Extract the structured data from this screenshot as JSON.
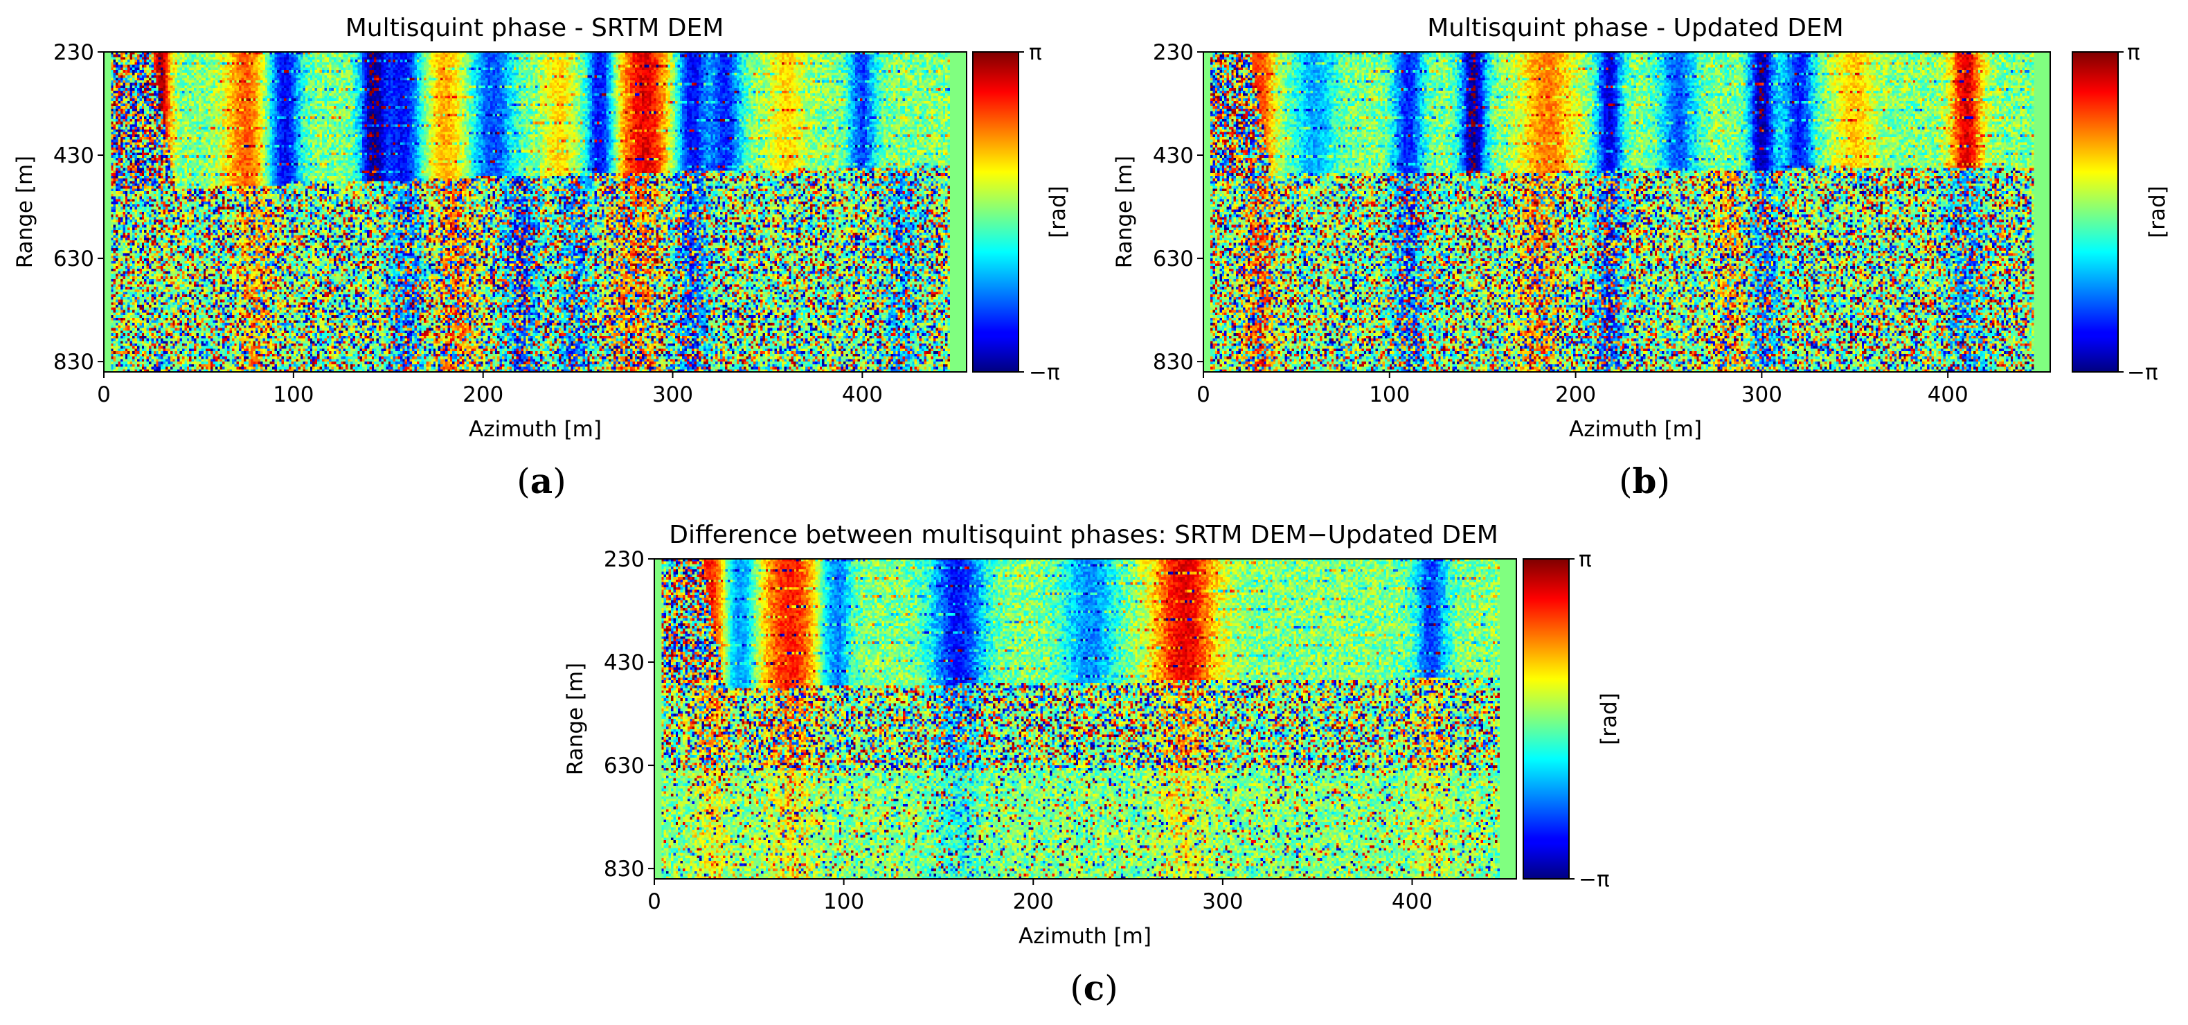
{
  "chart_data": [
    {
      "type": "heatmap",
      "panel": "a",
      "title": "Multisquint phase - SRTM DEM",
      "xlabel": "Azimuth [m]",
      "ylabel": "Range [m]",
      "x_ticks": [
        0,
        100,
        200,
        300,
        400
      ],
      "y_ticks": [
        230,
        430,
        630,
        830
      ],
      "xlim": [
        0,
        455
      ],
      "ylim": [
        850,
        230
      ],
      "colorbar": {
        "label": "[rad]",
        "max_label": "π",
        "min_label": "−π",
        "colormap": "jet",
        "range": [
          -3.14159,
          3.14159
        ]
      },
      "caption": "a",
      "features": {
        "boundary_azimuth": [
          0,
          100,
          200,
          300,
          400,
          455
        ],
        "boundary_range": [
          500,
          487,
          472,
          462,
          455,
          450
        ],
        "coherent_stripes_above_boundary": [
          {
            "azimuth": 30,
            "width": 4,
            "phase": 2.9
          },
          {
            "azimuth": 75,
            "width": 8,
            "phase": 1.8
          },
          {
            "azimuth": 95,
            "width": 6,
            "phase": -2.5
          },
          {
            "azimuth": 142,
            "width": 5,
            "phase": -3.0
          },
          {
            "azimuth": 158,
            "width": 7,
            "phase": -2.4
          },
          {
            "azimuth": 180,
            "width": 8,
            "phase": 1.3
          },
          {
            "azimuth": 205,
            "width": 8,
            "phase": -1.9
          },
          {
            "azimuth": 240,
            "width": 6,
            "phase": 1.0
          },
          {
            "azimuth": 262,
            "width": 5,
            "phase": -2.6
          },
          {
            "azimuth": 285,
            "width": 10,
            "phase": 2.5
          },
          {
            "azimuth": 310,
            "width": 6,
            "phase": -2.5
          },
          {
            "azimuth": 328,
            "width": 6,
            "phase": -2.1
          },
          {
            "azimuth": 360,
            "width": 7,
            "phase": 1.0
          },
          {
            "azimuth": 400,
            "width": 5,
            "phase": -2.0
          }
        ],
        "stripes_below_boundary": [
          {
            "azimuth": 80,
            "width": 6,
            "phase": 1.6
          },
          {
            "azimuth": 160,
            "width": 6,
            "phase": -2.2
          },
          {
            "azimuth": 185,
            "width": 8,
            "phase": 2.0
          },
          {
            "azimuth": 220,
            "width": 6,
            "phase": -2.6
          },
          {
            "azimuth": 250,
            "width": 6,
            "phase": -2.0
          },
          {
            "azimuth": 280,
            "width": 10,
            "phase": 1.9
          },
          {
            "azimuth": 310,
            "width": 6,
            "phase": -2.5
          },
          {
            "azimuth": 420,
            "width": 6,
            "phase": -1.6
          }
        ]
      }
    },
    {
      "type": "heatmap",
      "panel": "b",
      "title": "Multisquint phase - Updated DEM",
      "xlabel": "Azimuth [m]",
      "ylabel": "Range [m]",
      "x_ticks": [
        0,
        100,
        200,
        300,
        400
      ],
      "y_ticks": [
        230,
        430,
        630,
        830
      ],
      "xlim": [
        0,
        455
      ],
      "ylim": [
        850,
        230
      ],
      "colorbar": {
        "label": "[rad]",
        "max_label": "π",
        "min_label": "−π",
        "colormap": "jet",
        "range": [
          -3.14159,
          3.14159
        ]
      },
      "caption": "b",
      "features": {
        "boundary_azimuth": [
          0,
          100,
          200,
          300,
          400,
          455
        ],
        "boundary_range": [
          470,
          466,
          462,
          458,
          455,
          452
        ],
        "coherent_stripes_above_boundary": [
          {
            "azimuth": 30,
            "width": 6,
            "phase": 2.0
          },
          {
            "azimuth": 60,
            "width": 8,
            "phase": -1.3
          },
          {
            "azimuth": 110,
            "width": 6,
            "phase": -2.2
          },
          {
            "azimuth": 145,
            "width": 5,
            "phase": -3.0
          },
          {
            "azimuth": 185,
            "width": 10,
            "phase": 1.6
          },
          {
            "azimuth": 218,
            "width": 5,
            "phase": -2.6
          },
          {
            "azimuth": 255,
            "width": 7,
            "phase": -1.8
          },
          {
            "azimuth": 300,
            "width": 5,
            "phase": -2.9
          },
          {
            "azimuth": 320,
            "width": 6,
            "phase": -2.2
          },
          {
            "azimuth": 350,
            "width": 8,
            "phase": 1.1
          },
          {
            "azimuth": 410,
            "width": 6,
            "phase": 2.6
          }
        ],
        "stripes_below_boundary": [
          {
            "azimuth": 30,
            "width": 6,
            "phase": 2.3
          },
          {
            "azimuth": 110,
            "width": 6,
            "phase": -2.4
          },
          {
            "azimuth": 180,
            "width": 8,
            "phase": 1.8
          },
          {
            "azimuth": 218,
            "width": 5,
            "phase": -2.6
          },
          {
            "azimuth": 285,
            "width": 8,
            "phase": 1.6
          },
          {
            "azimuth": 300,
            "width": 6,
            "phase": -2.5
          },
          {
            "azimuth": 410,
            "width": 6,
            "phase": -1.8
          }
        ]
      }
    },
    {
      "type": "heatmap",
      "panel": "c",
      "title": "Difference between multisquint phases: SRTM DEM−Updated DEM",
      "xlabel": "Azimuth [m]",
      "ylabel": "Range [m]",
      "x_ticks": [
        0,
        100,
        200,
        300,
        400
      ],
      "y_ticks": [
        230,
        430,
        630,
        830
      ],
      "xlim": [
        0,
        455
      ],
      "ylim": [
        850,
        230
      ],
      "colorbar": {
        "label": "[rad]",
        "max_label": "π",
        "min_label": "−π",
        "colormap": "jet",
        "range": [
          -3.14159,
          3.14159
        ]
      },
      "caption": "c",
      "features": {
        "boundary_azimuth": [
          0,
          100,
          200,
          300,
          400,
          455
        ],
        "boundary_range": [
          482,
          476,
          470,
          466,
          462,
          458
        ],
        "coherent_stripes_above_boundary": [
          {
            "azimuth": 30,
            "width": 6,
            "phase": 2.4
          },
          {
            "azimuth": 45,
            "width": 6,
            "phase": -1.8
          },
          {
            "azimuth": 72,
            "width": 12,
            "phase": 2.2
          },
          {
            "azimuth": 95,
            "width": 6,
            "phase": -2.0
          },
          {
            "azimuth": 160,
            "width": 10,
            "phase": -2.3
          },
          {
            "azimuth": 230,
            "width": 10,
            "phase": -1.5
          },
          {
            "azimuth": 280,
            "width": 12,
            "phase": 2.5
          },
          {
            "azimuth": 410,
            "width": 6,
            "phase": -2.0
          }
        ],
        "stripes_below_boundary": [
          {
            "azimuth": 30,
            "width": 6,
            "phase": 1.8
          },
          {
            "azimuth": 72,
            "width": 10,
            "phase": 1.7
          },
          {
            "azimuth": 160,
            "width": 8,
            "phase": -1.6
          },
          {
            "azimuth": 280,
            "width": 10,
            "phase": 1.5
          },
          {
            "azimuth": 410,
            "width": 6,
            "phase": 1.2
          }
        ]
      }
    }
  ]
}
